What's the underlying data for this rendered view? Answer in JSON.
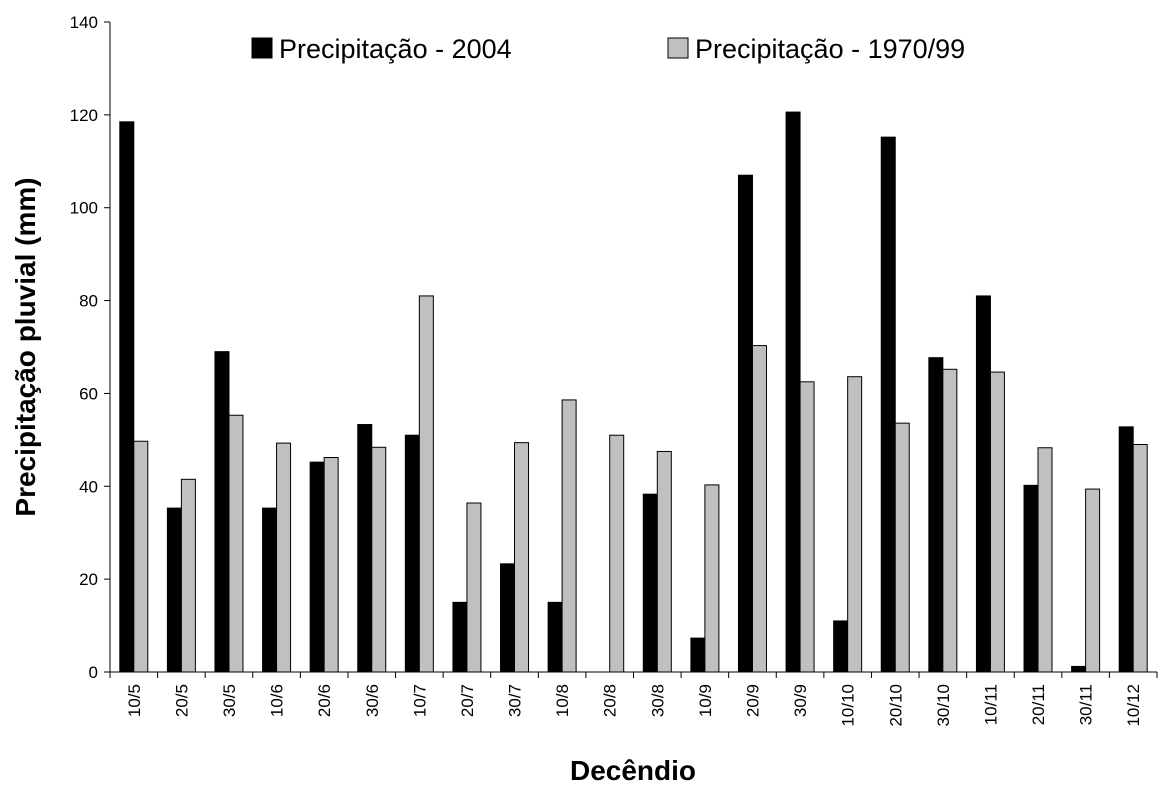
{
  "chart_data": {
    "type": "bar",
    "x_label": "Decêndio",
    "y_label": "Precipitação pluvial (mm)",
    "categories": [
      "10/5",
      "20/5",
      "30/5",
      "10/6",
      "20/6",
      "30/6",
      "10/7",
      "20/7",
      "30/7",
      "10/8",
      "20/8",
      "30/8",
      "10/9",
      "20/9",
      "30/9",
      "10/10",
      "20/10",
      "30/10",
      "10/11",
      "20/11",
      "30/11",
      "10/12"
    ],
    "series": [
      {
        "name": "Precipitação - 2004",
        "color": "#000000",
        "values": [
          118.5,
          35.3,
          69,
          35.3,
          45.2,
          53.3,
          51,
          15,
          23.3,
          15,
          0,
          38.3,
          7.3,
          107,
          120.6,
          11,
          115.2,
          67.7,
          81,
          40.2,
          1.2,
          52.8
        ]
      },
      {
        "name": "Precipitação - 1970/99",
        "color": "#c0c0c0",
        "values": [
          49.7,
          41.5,
          55.3,
          49.3,
          46.2,
          48.4,
          81,
          36.4,
          49.4,
          58.6,
          51,
          47.5,
          40.3,
          70.3,
          62.5,
          63.6,
          53.6,
          65.2,
          64.6,
          48.3,
          39.4,
          49
        ]
      }
    ],
    "ylim": [
      0,
      140
    ],
    "yticks": [
      0,
      20,
      40,
      60,
      80,
      100,
      120,
      140
    ],
    "grid": false,
    "legend": "top"
  }
}
